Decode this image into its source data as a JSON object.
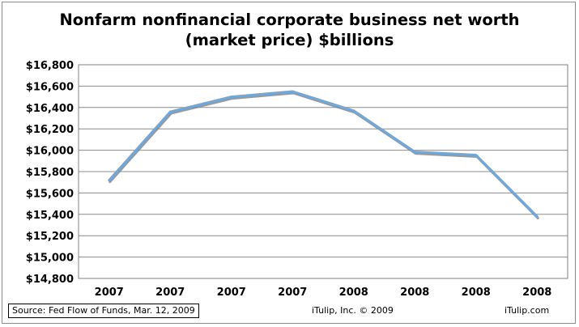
{
  "chart_data": {
    "type": "line",
    "title_lines": [
      "Nonfarm nonfinancial corporate business net worth",
      "(market price) $billions"
    ],
    "categories": [
      "2007",
      "2007",
      "2007",
      "2007",
      "2008",
      "2008",
      "2008",
      "2008"
    ],
    "series": [
      {
        "values": [
          15720,
          16360,
          16500,
          16550,
          16370,
          15985,
          15955,
          15380
        ]
      }
    ],
    "ylim": [
      14800,
      16800
    ],
    "yticks": [
      "$14,800",
      "$15,000",
      "$15,200",
      "$15,400",
      "$15,600",
      "$15,800",
      "$16,000",
      "$16,200",
      "$16,400",
      "$16,600",
      "$16,800"
    ],
    "ytick_values": [
      14800,
      15000,
      15200,
      15400,
      15600,
      15800,
      16000,
      16200,
      16400,
      16600,
      16800
    ],
    "grid": true,
    "legend": "none",
    "line_color": "#6fa8dc",
    "line_shadow_color": "#7f7f7f"
  },
  "footer": {
    "source": "Source: Fed Flow of Funds, Mar. 12, 2009",
    "copyright": "iTulip, Inc. © 2009",
    "site": "iTulip.com"
  }
}
